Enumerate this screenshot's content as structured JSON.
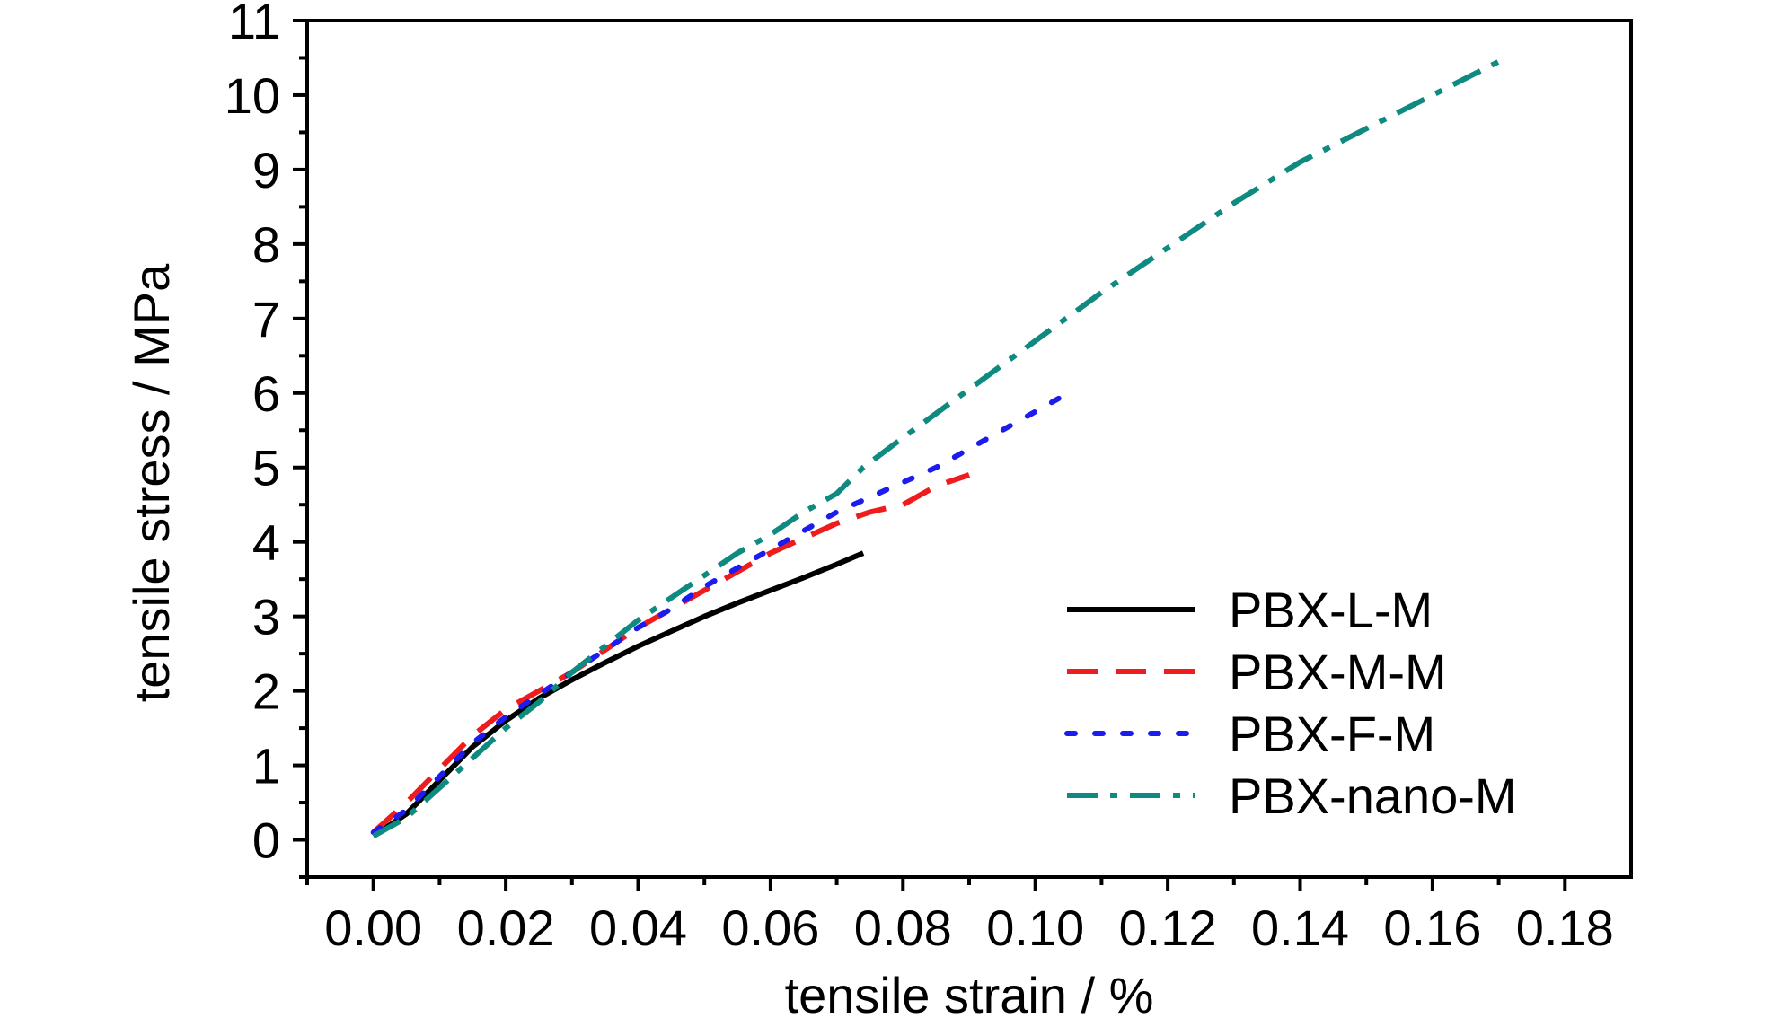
{
  "chart_data": {
    "type": "line",
    "title": "",
    "xlabel": "tensile strain / %",
    "ylabel": "tensile stress / MPa",
    "xlim": [
      -0.01,
      0.19
    ],
    "ylim": [
      -0.5,
      11
    ],
    "x_ticks": [
      0.0,
      0.02,
      0.04,
      0.06,
      0.08,
      0.1,
      0.12,
      0.14,
      0.16,
      0.18
    ],
    "x_tick_labels": [
      "0.00",
      "0.02",
      "0.04",
      "0.06",
      "0.08",
      "0.10",
      "0.12",
      "0.14",
      "0.16",
      "0.18"
    ],
    "y_ticks": [
      0,
      1,
      2,
      3,
      4,
      5,
      6,
      7,
      8,
      9,
      10,
      11
    ],
    "y_tick_labels": [
      "0",
      "1",
      "2",
      "3",
      "4",
      "5",
      "6",
      "7",
      "8",
      "9",
      "10",
      "11"
    ],
    "grid": false,
    "legend_position": "lower-right",
    "series": [
      {
        "name": "PBX-L-M",
        "color": "#000000",
        "style": "solid",
        "points": [
          [
            0.0,
            0.05
          ],
          [
            0.005,
            0.35
          ],
          [
            0.01,
            0.8
          ],
          [
            0.015,
            1.25
          ],
          [
            0.02,
            1.6
          ],
          [
            0.025,
            1.9
          ],
          [
            0.03,
            2.15
          ],
          [
            0.035,
            2.38
          ],
          [
            0.04,
            2.6
          ],
          [
            0.045,
            2.8
          ],
          [
            0.05,
            3.0
          ],
          [
            0.055,
            3.18
          ],
          [
            0.06,
            3.35
          ],
          [
            0.065,
            3.52
          ],
          [
            0.07,
            3.7
          ],
          [
            0.074,
            3.85
          ]
        ]
      },
      {
        "name": "PBX-M-M",
        "color": "#ee1c1c",
        "style": "dashed",
        "points": [
          [
            0.0,
            0.1
          ],
          [
            0.005,
            0.5
          ],
          [
            0.01,
            0.95
          ],
          [
            0.015,
            1.4
          ],
          [
            0.02,
            1.75
          ],
          [
            0.025,
            2.0
          ],
          [
            0.03,
            2.25
          ],
          [
            0.035,
            2.55
          ],
          [
            0.04,
            2.85
          ],
          [
            0.045,
            3.1
          ],
          [
            0.05,
            3.35
          ],
          [
            0.055,
            3.6
          ],
          [
            0.06,
            3.85
          ],
          [
            0.065,
            4.05
          ],
          [
            0.07,
            4.25
          ],
          [
            0.075,
            4.4
          ],
          [
            0.08,
            4.5
          ],
          [
            0.085,
            4.75
          ],
          [
            0.09,
            4.9
          ]
        ]
      },
      {
        "name": "PBX-F-M",
        "color": "#1c1cee",
        "style": "dotted",
        "points": [
          [
            0.0,
            0.1
          ],
          [
            0.005,
            0.4
          ],
          [
            0.01,
            0.85
          ],
          [
            0.015,
            1.3
          ],
          [
            0.02,
            1.65
          ],
          [
            0.025,
            1.95
          ],
          [
            0.03,
            2.25
          ],
          [
            0.035,
            2.55
          ],
          [
            0.04,
            2.85
          ],
          [
            0.045,
            3.1
          ],
          [
            0.05,
            3.4
          ],
          [
            0.055,
            3.65
          ],
          [
            0.06,
            3.9
          ],
          [
            0.065,
            4.15
          ],
          [
            0.07,
            4.4
          ],
          [
            0.075,
            4.6
          ],
          [
            0.08,
            4.8
          ],
          [
            0.085,
            5.0
          ],
          [
            0.09,
            5.25
          ],
          [
            0.095,
            5.5
          ],
          [
            0.1,
            5.75
          ],
          [
            0.105,
            6.0
          ]
        ]
      },
      {
        "name": "PBX-nano-M",
        "color": "#0f8a80",
        "style": "dashdot",
        "points": [
          [
            0.0,
            0.05
          ],
          [
            0.005,
            0.3
          ],
          [
            0.01,
            0.7
          ],
          [
            0.015,
            1.1
          ],
          [
            0.02,
            1.5
          ],
          [
            0.025,
            1.85
          ],
          [
            0.03,
            2.25
          ],
          [
            0.035,
            2.6
          ],
          [
            0.04,
            2.95
          ],
          [
            0.045,
            3.25
          ],
          [
            0.05,
            3.55
          ],
          [
            0.055,
            3.85
          ],
          [
            0.06,
            4.1
          ],
          [
            0.065,
            4.4
          ],
          [
            0.07,
            4.65
          ],
          [
            0.074,
            5.0
          ],
          [
            0.08,
            5.4
          ],
          [
            0.09,
            6.05
          ],
          [
            0.1,
            6.7
          ],
          [
            0.11,
            7.35
          ],
          [
            0.12,
            7.95
          ],
          [
            0.13,
            8.55
          ],
          [
            0.14,
            9.1
          ],
          [
            0.15,
            9.55
          ],
          [
            0.16,
            10.0
          ],
          [
            0.17,
            10.45
          ]
        ]
      }
    ]
  }
}
